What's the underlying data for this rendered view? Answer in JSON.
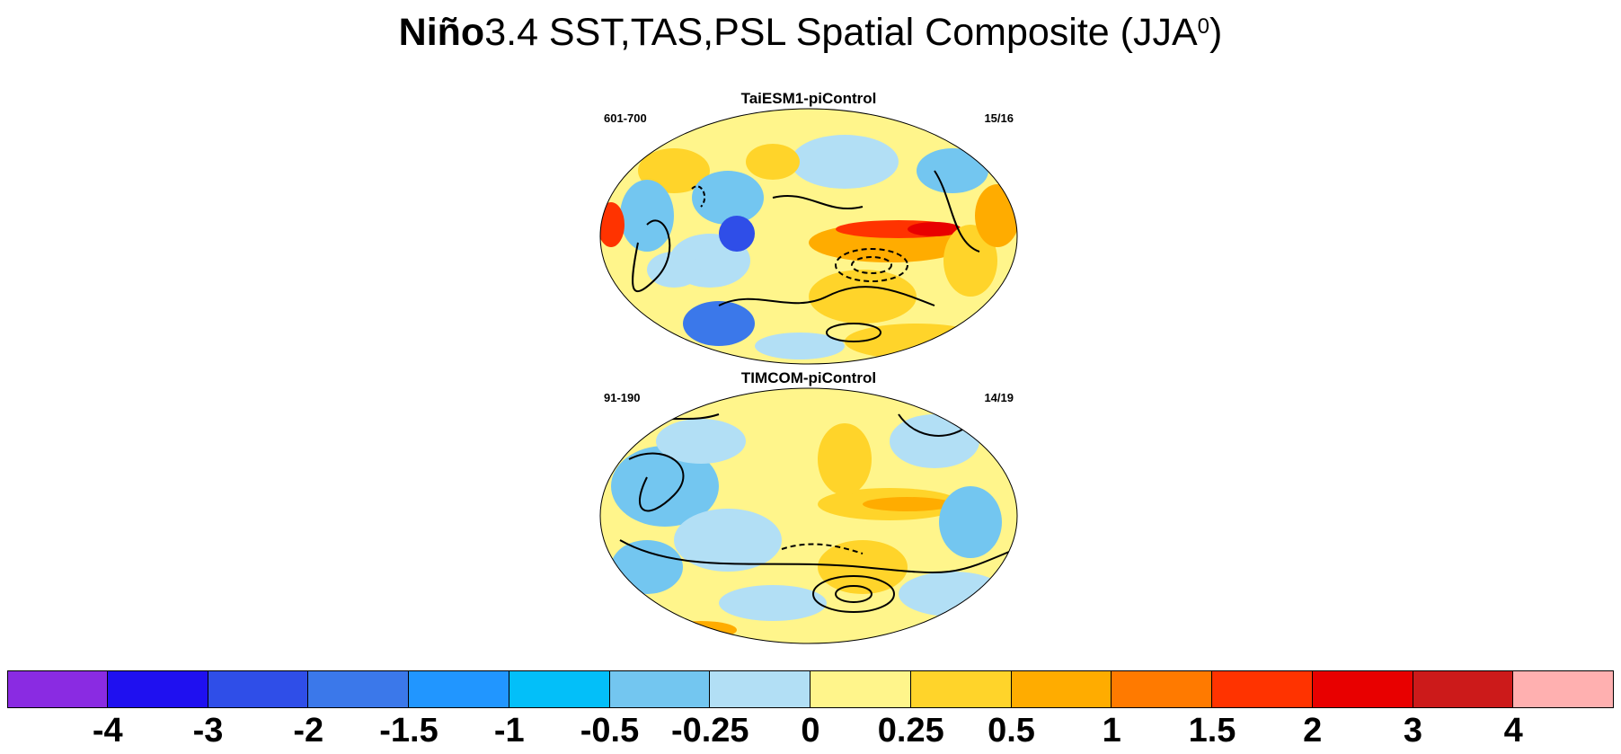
{
  "title": {
    "bold": "Niño",
    "rest": "3.4 SST,TAS,PSL Spatial Composite (JJA",
    "superscript": "0",
    "close": ")"
  },
  "panels": [
    {
      "title": "TaiESM1-piControl",
      "left_label": "601-700",
      "right_label": "15/16"
    },
    {
      "title": "TIMCOM-piControl",
      "left_label": "91-190",
      "right_label": "14/19"
    }
  ],
  "colorbar": {
    "colors": [
      "#8a2be2",
      "#1f10f0",
      "#2f4ee8",
      "#3b78ea",
      "#2196ff",
      "#03bff9",
      "#73c6f0",
      "#b2dff5",
      "#fff58b",
      "#ffd42a",
      "#ffac00",
      "#ff7a00",
      "#ff3300",
      "#e80000",
      "#cc1a1a",
      "#ffb0b0"
    ],
    "ticks": [
      "-4",
      "-3",
      "-2",
      "-1.5",
      "-1",
      "-0.5",
      "-0.25",
      "0",
      "0.25",
      "0.5",
      "1",
      "1.5",
      "2",
      "3",
      "4"
    ]
  }
}
